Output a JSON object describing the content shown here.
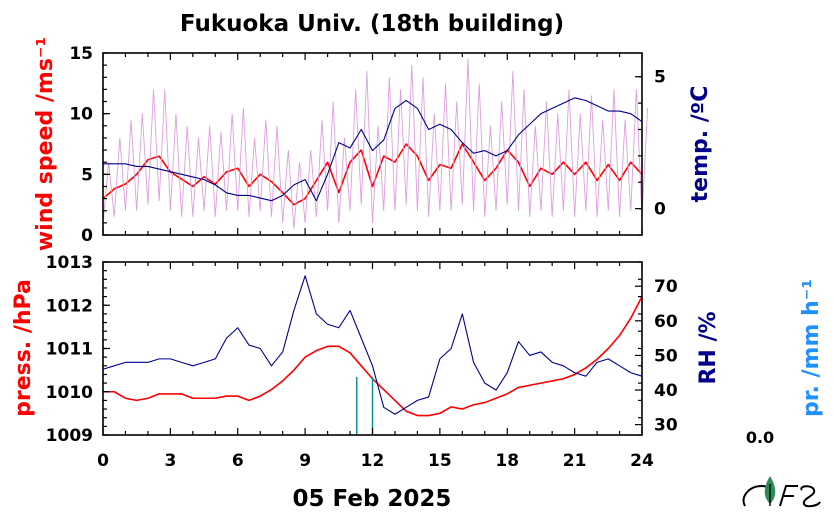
{
  "chart_data": [
    {
      "type": "line",
      "title": "Fukuoka Univ. (18th building)",
      "left_axis": {
        "label": "wind speed /ms⁻¹",
        "ylim": [
          0,
          15
        ],
        "ticks": [
          0,
          5,
          10,
          15
        ],
        "color": "#ff0000"
      },
      "right_axis": {
        "label": "temp. /ºC",
        "ylim": [
          -1,
          5.9
        ],
        "ticks": [
          0,
          5
        ],
        "color": "#00008b"
      },
      "x": {
        "xlim": [
          0,
          24
        ],
        "ticks": [
          0,
          3,
          6,
          9,
          12,
          15,
          18,
          21,
          24
        ]
      },
      "series": [
        {
          "role": "wind speed (10-min mean)",
          "axis": "left",
          "color": "#ff0000",
          "x": [
            0,
            0.5,
            1,
            1.5,
            2,
            2.5,
            3,
            3.5,
            4,
            4.5,
            5,
            5.5,
            6,
            6.5,
            7,
            7.5,
            8,
            8.5,
            9,
            9.5,
            10,
            10.5,
            11,
            11.5,
            12,
            12.5,
            13,
            13.5,
            14,
            14.5,
            15,
            15.5,
            16,
            16.5,
            17,
            17.5,
            18,
            18.5,
            19,
            19.5,
            20,
            20.5,
            21,
            21.5,
            22,
            22.5,
            23,
            23.5,
            24
          ],
          "values": [
            3.0,
            3.8,
            4.2,
            5.0,
            6.2,
            6.5,
            5.2,
            4.6,
            4.0,
            4.8,
            4.2,
            5.2,
            5.5,
            4.0,
            5.0,
            4.4,
            3.5,
            2.5,
            3.0,
            4.5,
            6.0,
            3.5,
            6.0,
            7.0,
            4.0,
            6.5,
            6.0,
            7.5,
            6.5,
            4.5,
            5.8,
            5.5,
            7.5,
            6.0,
            4.5,
            5.5,
            7.0,
            6.0,
            4.0,
            5.5,
            5.0,
            6.0,
            5.0,
            6.0,
            4.5,
            5.8,
            4.5,
            6.0,
            5.0
          ]
        },
        {
          "role": "wind speed (gust range)",
          "axis": "left",
          "color": "#dda0dd",
          "x": [
            0,
            0.5,
            1,
            1.5,
            2,
            2.5,
            3,
            3.5,
            4,
            4.5,
            5,
            5.5,
            6,
            6.5,
            7,
            7.5,
            8,
            8.5,
            9,
            9.5,
            10,
            10.5,
            11,
            11.5,
            12,
            12.5,
            13,
            13.5,
            14,
            14.5,
            15,
            15.5,
            16,
            16.5,
            17,
            17.5,
            18,
            18.5,
            19,
            19.5,
            20,
            20.5,
            21,
            21.5,
            22,
            22.5,
            23,
            23.5,
            24
          ],
          "min": [
            1.0,
            1.5,
            2.0,
            2.0,
            2.5,
            2.8,
            2.0,
            1.5,
            1.5,
            2.0,
            1.5,
            2.0,
            2.0,
            1.5,
            2.0,
            1.5,
            1.0,
            0.5,
            1.0,
            1.5,
            2.0,
            1.0,
            2.0,
            2.5,
            1.0,
            2.0,
            2.0,
            2.5,
            2.0,
            1.5,
            2.0,
            2.0,
            2.5,
            2.0,
            1.5,
            2.0,
            2.5,
            2.0,
            1.5,
            2.0,
            1.5,
            2.0,
            1.5,
            2.0,
            1.5,
            2.0,
            1.5,
            2.0,
            1.5
          ],
          "max": [
            6.0,
            8.0,
            9.5,
            10.0,
            12.0,
            12.0,
            10.0,
            9.0,
            8.0,
            9.0,
            8.5,
            10.0,
            10.5,
            8.0,
            9.5,
            9.0,
            7.0,
            6.0,
            7.0,
            9.5,
            11.0,
            8.0,
            12.0,
            13.5,
            9.0,
            13.0,
            12.0,
            14.0,
            13.0,
            10.0,
            12.5,
            11.0,
            14.5,
            12.5,
            9.0,
            11.0,
            13.5,
            12.0,
            9.0,
            11.0,
            10.0,
            12.0,
            10.0,
            11.5,
            9.5,
            12.0,
            9.5,
            12.0,
            10.5
          ]
        },
        {
          "role": "temperature",
          "axis": "right",
          "color": "#00008b",
          "x": [
            0,
            0.5,
            1,
            1.5,
            2,
            2.5,
            3,
            3.5,
            4,
            4.5,
            5,
            5.5,
            6,
            6.5,
            7,
            7.5,
            8,
            8.5,
            9,
            9.5,
            10,
            10.5,
            11,
            11.5,
            12,
            12.5,
            13,
            13.5,
            14,
            14.5,
            15,
            15.5,
            16,
            16.5,
            17,
            17.5,
            18,
            18.5,
            19,
            19.5,
            20,
            20.5,
            21,
            21.5,
            22,
            22.5,
            23,
            23.5,
            24
          ],
          "values": [
            1.7,
            1.7,
            1.7,
            1.6,
            1.6,
            1.5,
            1.4,
            1.3,
            1.2,
            1.1,
            0.9,
            0.6,
            0.5,
            0.5,
            0.4,
            0.3,
            0.5,
            0.9,
            1.1,
            0.3,
            1.3,
            2.5,
            2.3,
            3.0,
            2.2,
            2.6,
            3.8,
            4.1,
            3.8,
            3.0,
            3.2,
            3.0,
            2.5,
            2.1,
            2.2,
            2.0,
            2.2,
            2.8,
            3.2,
            3.6,
            3.8,
            4.0,
            4.2,
            4.1,
            3.9,
            3.7,
            3.7,
            3.6,
            3.3
          ]
        }
      ]
    },
    {
      "type": "line",
      "left_axis": {
        "label": "press. /hPa",
        "ylim": [
          1009,
          1013
        ],
        "ticks": [
          1009,
          1010,
          1011,
          1012,
          1013
        ],
        "color": "#ff0000"
      },
      "right_axis": {
        "label": "RH /%",
        "ylim": [
          27,
          77
        ],
        "ticks": [
          30,
          40,
          50,
          60,
          70
        ],
        "color": "#00008b"
      },
      "precip_axis": {
        "label": "pr. /mm h⁻¹",
        "color": "#1e90ff",
        "value": "0.0"
      },
      "x": {
        "xlim": [
          0,
          24
        ],
        "ticks": [
          0,
          3,
          6,
          9,
          12,
          15,
          18,
          21,
          24
        ],
        "xlabel": "05 Feb 2025"
      },
      "series": [
        {
          "role": "pressure",
          "axis": "left",
          "color": "#ff0000",
          "x": [
            0,
            0.5,
            1,
            1.5,
            2,
            2.5,
            3,
            3.5,
            4,
            4.5,
            5,
            5.5,
            6,
            6.5,
            7,
            7.5,
            8,
            8.5,
            9,
            9.5,
            10,
            10.5,
            11,
            11.5,
            12,
            12.5,
            13,
            13.5,
            14,
            14.5,
            15,
            15.5,
            16,
            16.5,
            17,
            17.5,
            18,
            18.5,
            19,
            19.5,
            20,
            20.5,
            21,
            21.5,
            22,
            22.5,
            23,
            23.5,
            24
          ],
          "values": [
            1010.0,
            1010.0,
            1009.85,
            1009.8,
            1009.85,
            1009.95,
            1009.95,
            1009.95,
            1009.85,
            1009.85,
            1009.85,
            1009.9,
            1009.9,
            1009.8,
            1009.9,
            1010.05,
            1010.25,
            1010.5,
            1010.8,
            1010.95,
            1011.05,
            1011.05,
            1010.9,
            1010.6,
            1010.3,
            1010.05,
            1009.8,
            1009.55,
            1009.45,
            1009.45,
            1009.5,
            1009.65,
            1009.6,
            1009.7,
            1009.75,
            1009.85,
            1009.95,
            1010.1,
            1010.15,
            1010.2,
            1010.25,
            1010.3,
            1010.4,
            1010.55,
            1010.75,
            1011.0,
            1011.3,
            1011.7,
            1012.2
          ]
        },
        {
          "role": "relative humidity",
          "axis": "right",
          "color": "#00008b",
          "x": [
            0,
            0.5,
            1,
            1.5,
            2,
            2.5,
            3,
            3.5,
            4,
            4.5,
            5,
            5.5,
            6,
            6.5,
            7,
            7.5,
            8,
            8.5,
            9,
            9.5,
            10,
            10.5,
            11,
            11.5,
            12,
            12.5,
            13,
            13.5,
            14,
            14.5,
            15,
            15.5,
            16,
            16.5,
            17,
            17.5,
            18,
            18.5,
            19,
            19.5,
            20,
            20.5,
            21,
            21.5,
            22,
            22.5,
            23,
            23.5,
            24
          ],
          "values": [
            46,
            47,
            48,
            48,
            48,
            49,
            49,
            48,
            47,
            48,
            49,
            55,
            58,
            53,
            52,
            47,
            51,
            63,
            73,
            62,
            59,
            58,
            63,
            55,
            47,
            35,
            33,
            35,
            37,
            38,
            49,
            52,
            62,
            48,
            42,
            40,
            45,
            54,
            50,
            51,
            48,
            47,
            45,
            44,
            48,
            49,
            47,
            45,
            44
          ]
        },
        {
          "role": "precipitation",
          "axis": "precip",
          "color": "#008b8b",
          "type": "bars",
          "x": [
            11.3,
            12.0
          ],
          "values": [
            0.5,
            0.5
          ]
        }
      ]
    }
  ]
}
